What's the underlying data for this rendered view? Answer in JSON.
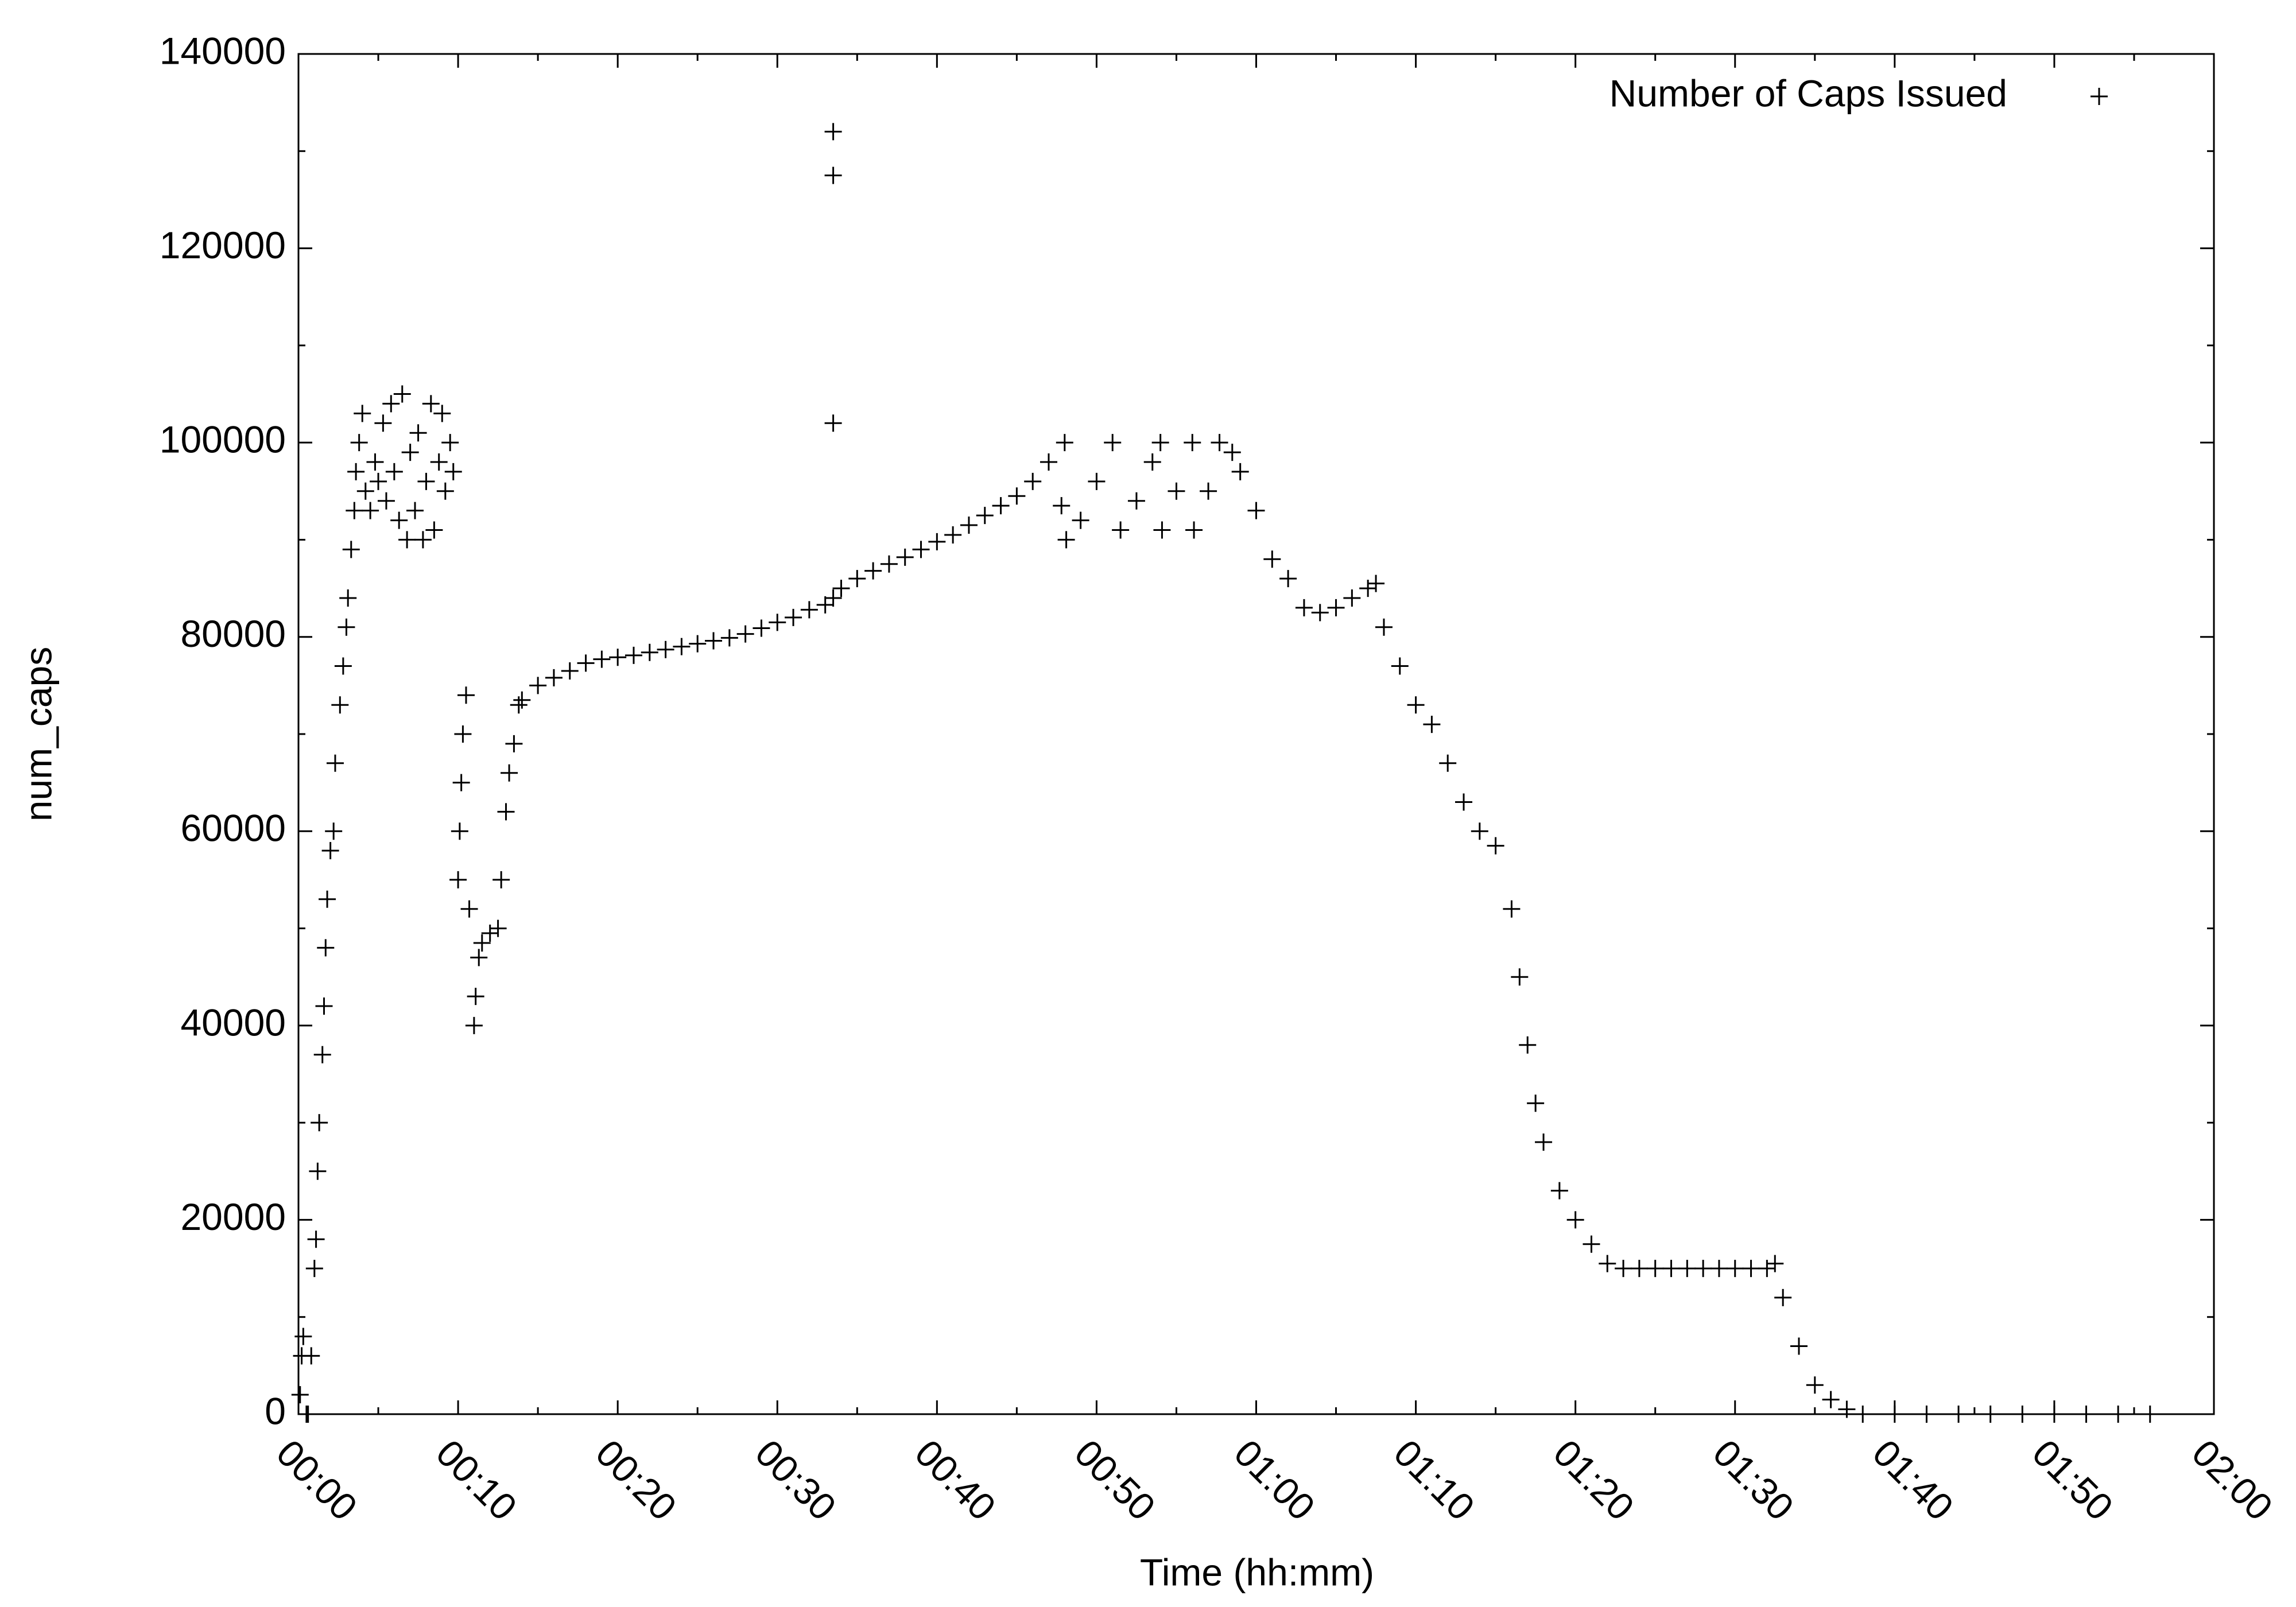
{
  "chart_data": {
    "type": "scatter",
    "xlabel": "Time (hh:mm)",
    "ylabel": "num_caps",
    "legend": "top-right",
    "series": [
      {
        "name": "Number of Caps Issued",
        "color": "#000000",
        "x": [
          0.1,
          0.2,
          0.3,
          0.5,
          0.6,
          0.8,
          1.0,
          1.1,
          1.2,
          1.3,
          1.5,
          1.6,
          1.7,
          1.8,
          2.0,
          2.2,
          2.3,
          2.6,
          2.8,
          3.0,
          3.1,
          3.3,
          3.5,
          3.6,
          3.8,
          4.0,
          4.2,
          4.5,
          4.8,
          5.0,
          5.3,
          5.5,
          5.8,
          6.0,
          6.3,
          6.5,
          6.8,
          7.0,
          7.3,
          7.5,
          7.8,
          8.0,
          8.3,
          8.5,
          8.8,
          9.0,
          9.2,
          9.5,
          9.7,
          10.0,
          10.1,
          10.2,
          10.3,
          10.5,
          10.7,
          11.0,
          11.1,
          11.3,
          11.5,
          12.0,
          12.5,
          12.7,
          13.0,
          13.2,
          13.5,
          13.8,
          14.0,
          15,
          16,
          17,
          18,
          19,
          20,
          21,
          22,
          23,
          24,
          25,
          26,
          27,
          28,
          29,
          30,
          31,
          32,
          33,
          33.5,
          33.5,
          33.5,
          33.5,
          34,
          35,
          36,
          37,
          38,
          39,
          40,
          41,
          42,
          43,
          44,
          45,
          46,
          47,
          47.8,
          48,
          48.1,
          49,
          50,
          51,
          51.5,
          52.5,
          53.5,
          54,
          54.1,
          55,
          56,
          56.1,
          57,
          57.7,
          58.5,
          59,
          60,
          61,
          62,
          63,
          64,
          65,
          66,
          67,
          67.5,
          68,
          69,
          70,
          71,
          72,
          73,
          74,
          75,
          76,
          76.5,
          77,
          77.5,
          78,
          79,
          80,
          81,
          82,
          83,
          84,
          85,
          86,
          87,
          88,
          89,
          90,
          91,
          92,
          92.5,
          93,
          94,
          95,
          96,
          97,
          98,
          100,
          102,
          104,
          106,
          108,
          110,
          112,
          114,
          116
        ],
        "values": [
          2000,
          6000,
          8000,
          0,
          0,
          6000,
          15000,
          18000,
          25000,
          30000,
          37000,
          42000,
          48000,
          53000,
          58000,
          60000,
          67000,
          73000,
          77000,
          81000,
          84000,
          89000,
          93000,
          97000,
          100000,
          103000,
          95000,
          93000,
          98000,
          96000,
          102000,
          94000,
          104000,
          97000,
          92000,
          105000,
          90000,
          99000,
          93000,
          101000,
          90000,
          96000,
          104000,
          91000,
          98000,
          103000,
          95000,
          100000,
          97000,
          55000,
          60000,
          65000,
          70000,
          74000,
          52000,
          40000,
          43000,
          47000,
          48500,
          49500,
          50000,
          55000,
          62000,
          66000,
          69000,
          73000,
          73500,
          75000,
          75800,
          76500,
          77300,
          77700,
          77900,
          78100,
          78400,
          78700,
          79000,
          79300,
          79600,
          79900,
          80300,
          80900,
          81500,
          82000,
          82800,
          83300,
          84000,
          102000,
          127500,
          132000,
          85000,
          86000,
          86800,
          87500,
          88200,
          89000,
          89800,
          90500,
          91500,
          92500,
          93500,
          94500,
          96000,
          98000,
          93500,
          100000,
          90000,
          92000,
          96000,
          100000,
          91000,
          94000,
          98000,
          100000,
          91000,
          95000,
          100000,
          91000,
          95000,
          100000,
          99000,
          97000,
          93000,
          88000,
          86000,
          83000,
          82500,
          83000,
          84000,
          85000,
          85500,
          81000,
          77000,
          73000,
          71000,
          67000,
          63000,
          60000,
          58500,
          52000,
          45000,
          38000,
          32000,
          28000,
          23000,
          20000,
          17500,
          15500,
          15000,
          15000,
          15000,
          15000,
          15000,
          15000,
          15000,
          15000,
          15000,
          15000,
          15500,
          12000,
          7000,
          3000,
          1500,
          500,
          0,
          0,
          0,
          0,
          0,
          0,
          0,
          0,
          0,
          0
        ]
      }
    ],
    "xlim": [
      0,
      120
    ],
    "xticks": [
      {
        "value": 0,
        "label": "00:00"
      },
      {
        "value": 10,
        "label": "00:10"
      },
      {
        "value": 20,
        "label": "00:20"
      },
      {
        "value": 30,
        "label": "00:30"
      },
      {
        "value": 40,
        "label": "00:40"
      },
      {
        "value": 50,
        "label": "00:50"
      },
      {
        "value": 60,
        "label": "01:00"
      },
      {
        "value": 70,
        "label": "01:10"
      },
      {
        "value": 80,
        "label": "01:20"
      },
      {
        "value": 90,
        "label": "01:30"
      },
      {
        "value": 100,
        "label": "01:40"
      },
      {
        "value": 110,
        "label": "01:50"
      },
      {
        "value": 120,
        "label": "02:00"
      }
    ],
    "ylim": [
      0,
      140000
    ],
    "yticks": [
      0,
      20000,
      40000,
      60000,
      80000,
      100000,
      120000,
      140000
    ],
    "grid": false
  }
}
